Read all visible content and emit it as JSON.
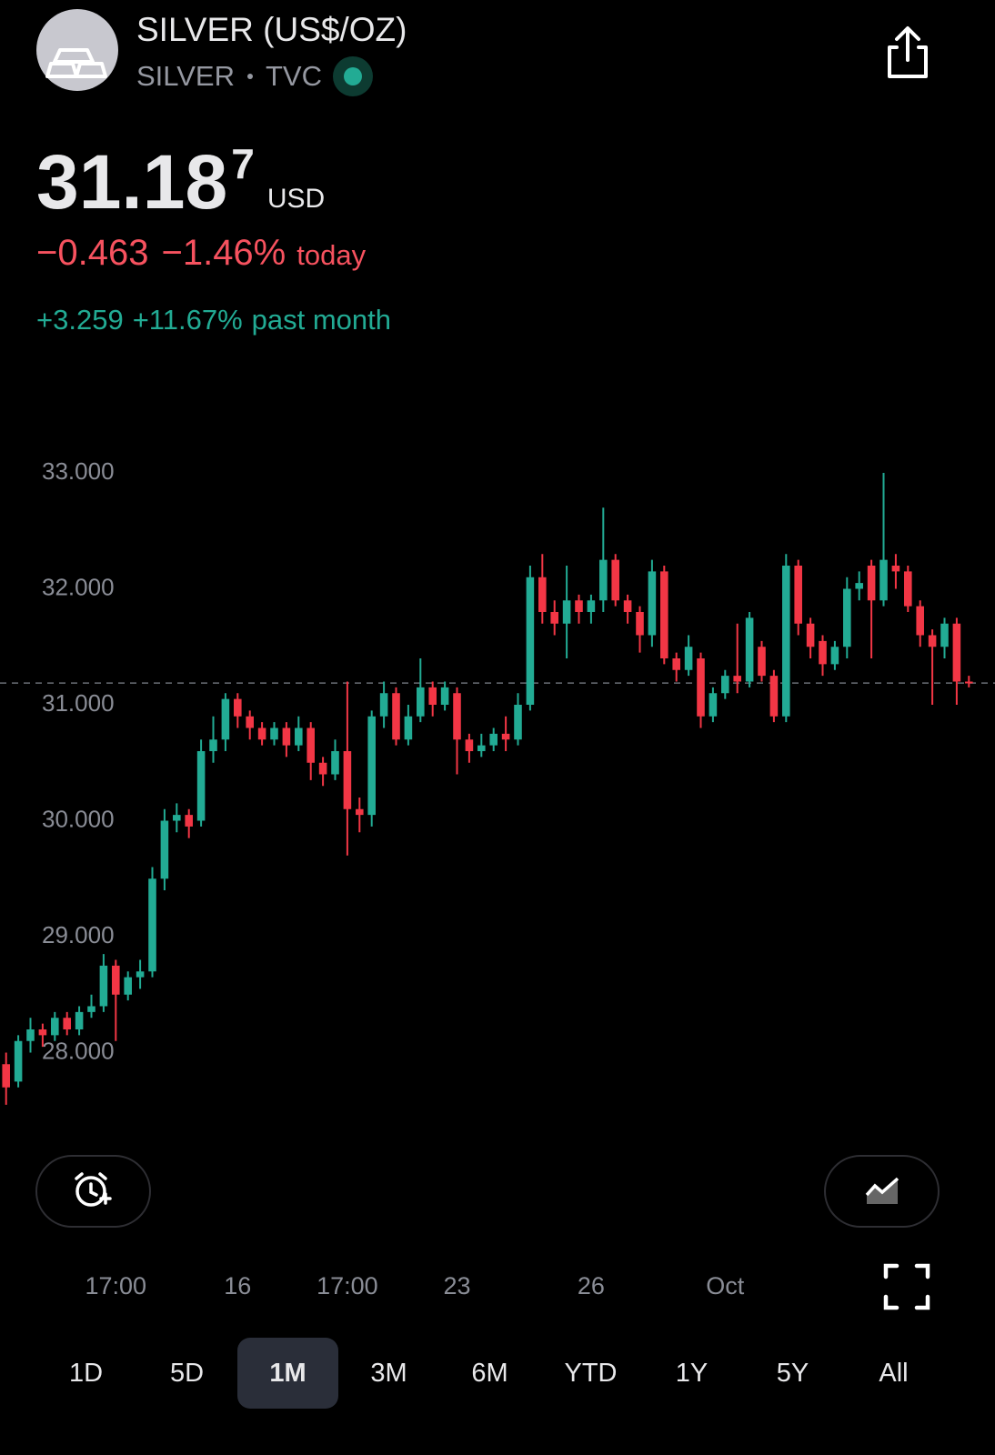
{
  "header": {
    "title": "SILVER (US$/OZ)",
    "symbol": "SILVER",
    "exchange": "TVC",
    "price": "31.18",
    "price_last_digit": "7",
    "currency": "USD",
    "change": "−0.463",
    "change_pct": "−1.46%",
    "change_period": "today",
    "month_change": "+3.259",
    "month_change_pct": "+11.67%",
    "month_period": "past month"
  },
  "chart_data": {
    "type": "candlestick",
    "up_color": "#22ab94",
    "down_color": "#f23645",
    "categories": [
      null,
      null,
      null,
      null,
      null,
      null,
      null,
      null,
      null,
      "17:00",
      null,
      null,
      null,
      null,
      null,
      null,
      null,
      null,
      null,
      "16",
      null,
      null,
      null,
      null,
      null,
      null,
      null,
      null,
      "17:00",
      null,
      null,
      null,
      null,
      null,
      null,
      null,
      null,
      "23",
      null,
      null,
      null,
      null,
      null,
      null,
      null,
      null,
      null,
      null,
      "26",
      null,
      null,
      null,
      null,
      null,
      null,
      null,
      null,
      null,
      null,
      "Oct",
      null,
      null,
      null,
      null,
      null,
      null,
      null,
      null,
      null,
      null,
      null,
      null,
      null,
      null,
      null,
      null,
      null,
      null,
      null,
      null
    ],
    "open": [
      27.9,
      27.75,
      28.1,
      28.2,
      28.15,
      28.3,
      28.2,
      28.35,
      28.4,
      28.75,
      28.5,
      28.65,
      28.7,
      29.5,
      30.0,
      30.05,
      30.0,
      30.6,
      30.7,
      31.05,
      30.9,
      30.8,
      30.7,
      30.8,
      30.65,
      30.8,
      30.5,
      30.4,
      30.6,
      30.1,
      30.05,
      30.9,
      31.1,
      30.7,
      30.9,
      31.15,
      31.0,
      31.1,
      30.7,
      30.6,
      30.65,
      30.75,
      30.7,
      31.0,
      32.1,
      31.8,
      31.7,
      31.9,
      31.8,
      31.9,
      32.25,
      31.9,
      31.8,
      31.6,
      32.15,
      31.4,
      31.3,
      31.4,
      30.9,
      31.1,
      31.25,
      31.2,
      31.5,
      31.25,
      30.9,
      32.2,
      31.7,
      31.55,
      31.35,
      31.5,
      32.0,
      32.2,
      31.9,
      32.2,
      32.15,
      31.85,
      31.6,
      31.5,
      31.7,
      31.2
    ],
    "high": [
      28.0,
      28.15,
      28.3,
      28.25,
      28.35,
      28.35,
      28.4,
      28.5,
      28.85,
      28.8,
      28.7,
      28.8,
      29.6,
      30.1,
      30.15,
      30.1,
      30.7,
      30.9,
      31.1,
      31.1,
      30.95,
      30.85,
      30.85,
      30.85,
      30.9,
      30.85,
      30.55,
      30.7,
      31.2,
      30.2,
      30.95,
      31.2,
      31.15,
      31.0,
      31.4,
      31.2,
      31.2,
      31.15,
      30.75,
      30.75,
      30.8,
      30.9,
      31.1,
      32.2,
      32.3,
      31.9,
      32.2,
      31.95,
      31.95,
      32.7,
      32.3,
      31.95,
      31.85,
      32.25,
      32.2,
      31.45,
      31.6,
      31.45,
      31.15,
      31.3,
      31.7,
      31.8,
      31.55,
      31.3,
      32.3,
      32.25,
      31.75,
      31.6,
      31.55,
      32.1,
      32.15,
      32.25,
      33.0,
      32.3,
      32.2,
      31.9,
      31.65,
      31.75,
      31.75,
      31.25
    ],
    "low": [
      27.55,
      27.7,
      28.0,
      28.05,
      28.1,
      28.15,
      28.15,
      28.3,
      28.35,
      28.1,
      28.45,
      28.55,
      28.65,
      29.4,
      29.9,
      29.85,
      29.95,
      30.5,
      30.6,
      30.8,
      30.7,
      30.65,
      30.65,
      30.55,
      30.6,
      30.35,
      30.3,
      30.35,
      29.7,
      29.9,
      29.95,
      30.8,
      30.65,
      30.65,
      30.85,
      30.9,
      30.95,
      30.4,
      30.5,
      30.55,
      30.6,
      30.6,
      30.65,
      30.95,
      31.7,
      31.6,
      31.4,
      31.7,
      31.7,
      31.8,
      31.85,
      31.7,
      31.45,
      31.5,
      31.35,
      31.2,
      31.25,
      30.8,
      30.85,
      31.05,
      31.1,
      31.15,
      31.2,
      30.85,
      30.85,
      31.6,
      31.4,
      31.25,
      31.3,
      31.4,
      31.9,
      31.4,
      31.85,
      32.0,
      31.8,
      31.5,
      31.0,
      31.4,
      31.0,
      31.15
    ],
    "close": [
      27.7,
      28.1,
      28.2,
      28.15,
      28.3,
      28.2,
      28.35,
      28.4,
      28.75,
      28.5,
      28.65,
      28.7,
      29.5,
      30.0,
      30.05,
      29.95,
      30.6,
      30.7,
      31.05,
      30.9,
      30.8,
      30.7,
      30.8,
      30.65,
      30.8,
      30.5,
      30.4,
      30.6,
      30.1,
      30.05,
      30.9,
      31.1,
      30.7,
      30.9,
      31.15,
      31.0,
      31.15,
      30.7,
      30.6,
      30.65,
      30.75,
      30.7,
      31.0,
      32.1,
      31.8,
      31.7,
      31.9,
      31.8,
      31.9,
      32.25,
      31.9,
      31.8,
      31.6,
      32.15,
      31.4,
      31.3,
      31.5,
      30.9,
      31.1,
      31.25,
      31.2,
      31.75,
      31.25,
      30.9,
      32.2,
      31.7,
      31.5,
      31.35,
      31.5,
      32.0,
      32.05,
      31.9,
      32.25,
      32.15,
      31.85,
      31.6,
      31.5,
      31.7,
      31.2,
      31.187
    ],
    "last_price": 31.187,
    "ylim": [
      27.4,
      33.4
    ],
    "yticks": [
      {
        "value": 28,
        "label": "28.000"
      },
      {
        "value": 29,
        "label": "29.000"
      },
      {
        "value": 30,
        "label": "30.000"
      },
      {
        "value": 31,
        "label": "31.000"
      },
      {
        "value": 32,
        "label": "32.000"
      },
      {
        "value": 33,
        "label": "33.000"
      }
    ]
  },
  "ranges": {
    "options": [
      "1D",
      "5D",
      "1M",
      "3M",
      "6M",
      "YTD",
      "1Y",
      "5Y",
      "All"
    ],
    "selected": "1M"
  }
}
